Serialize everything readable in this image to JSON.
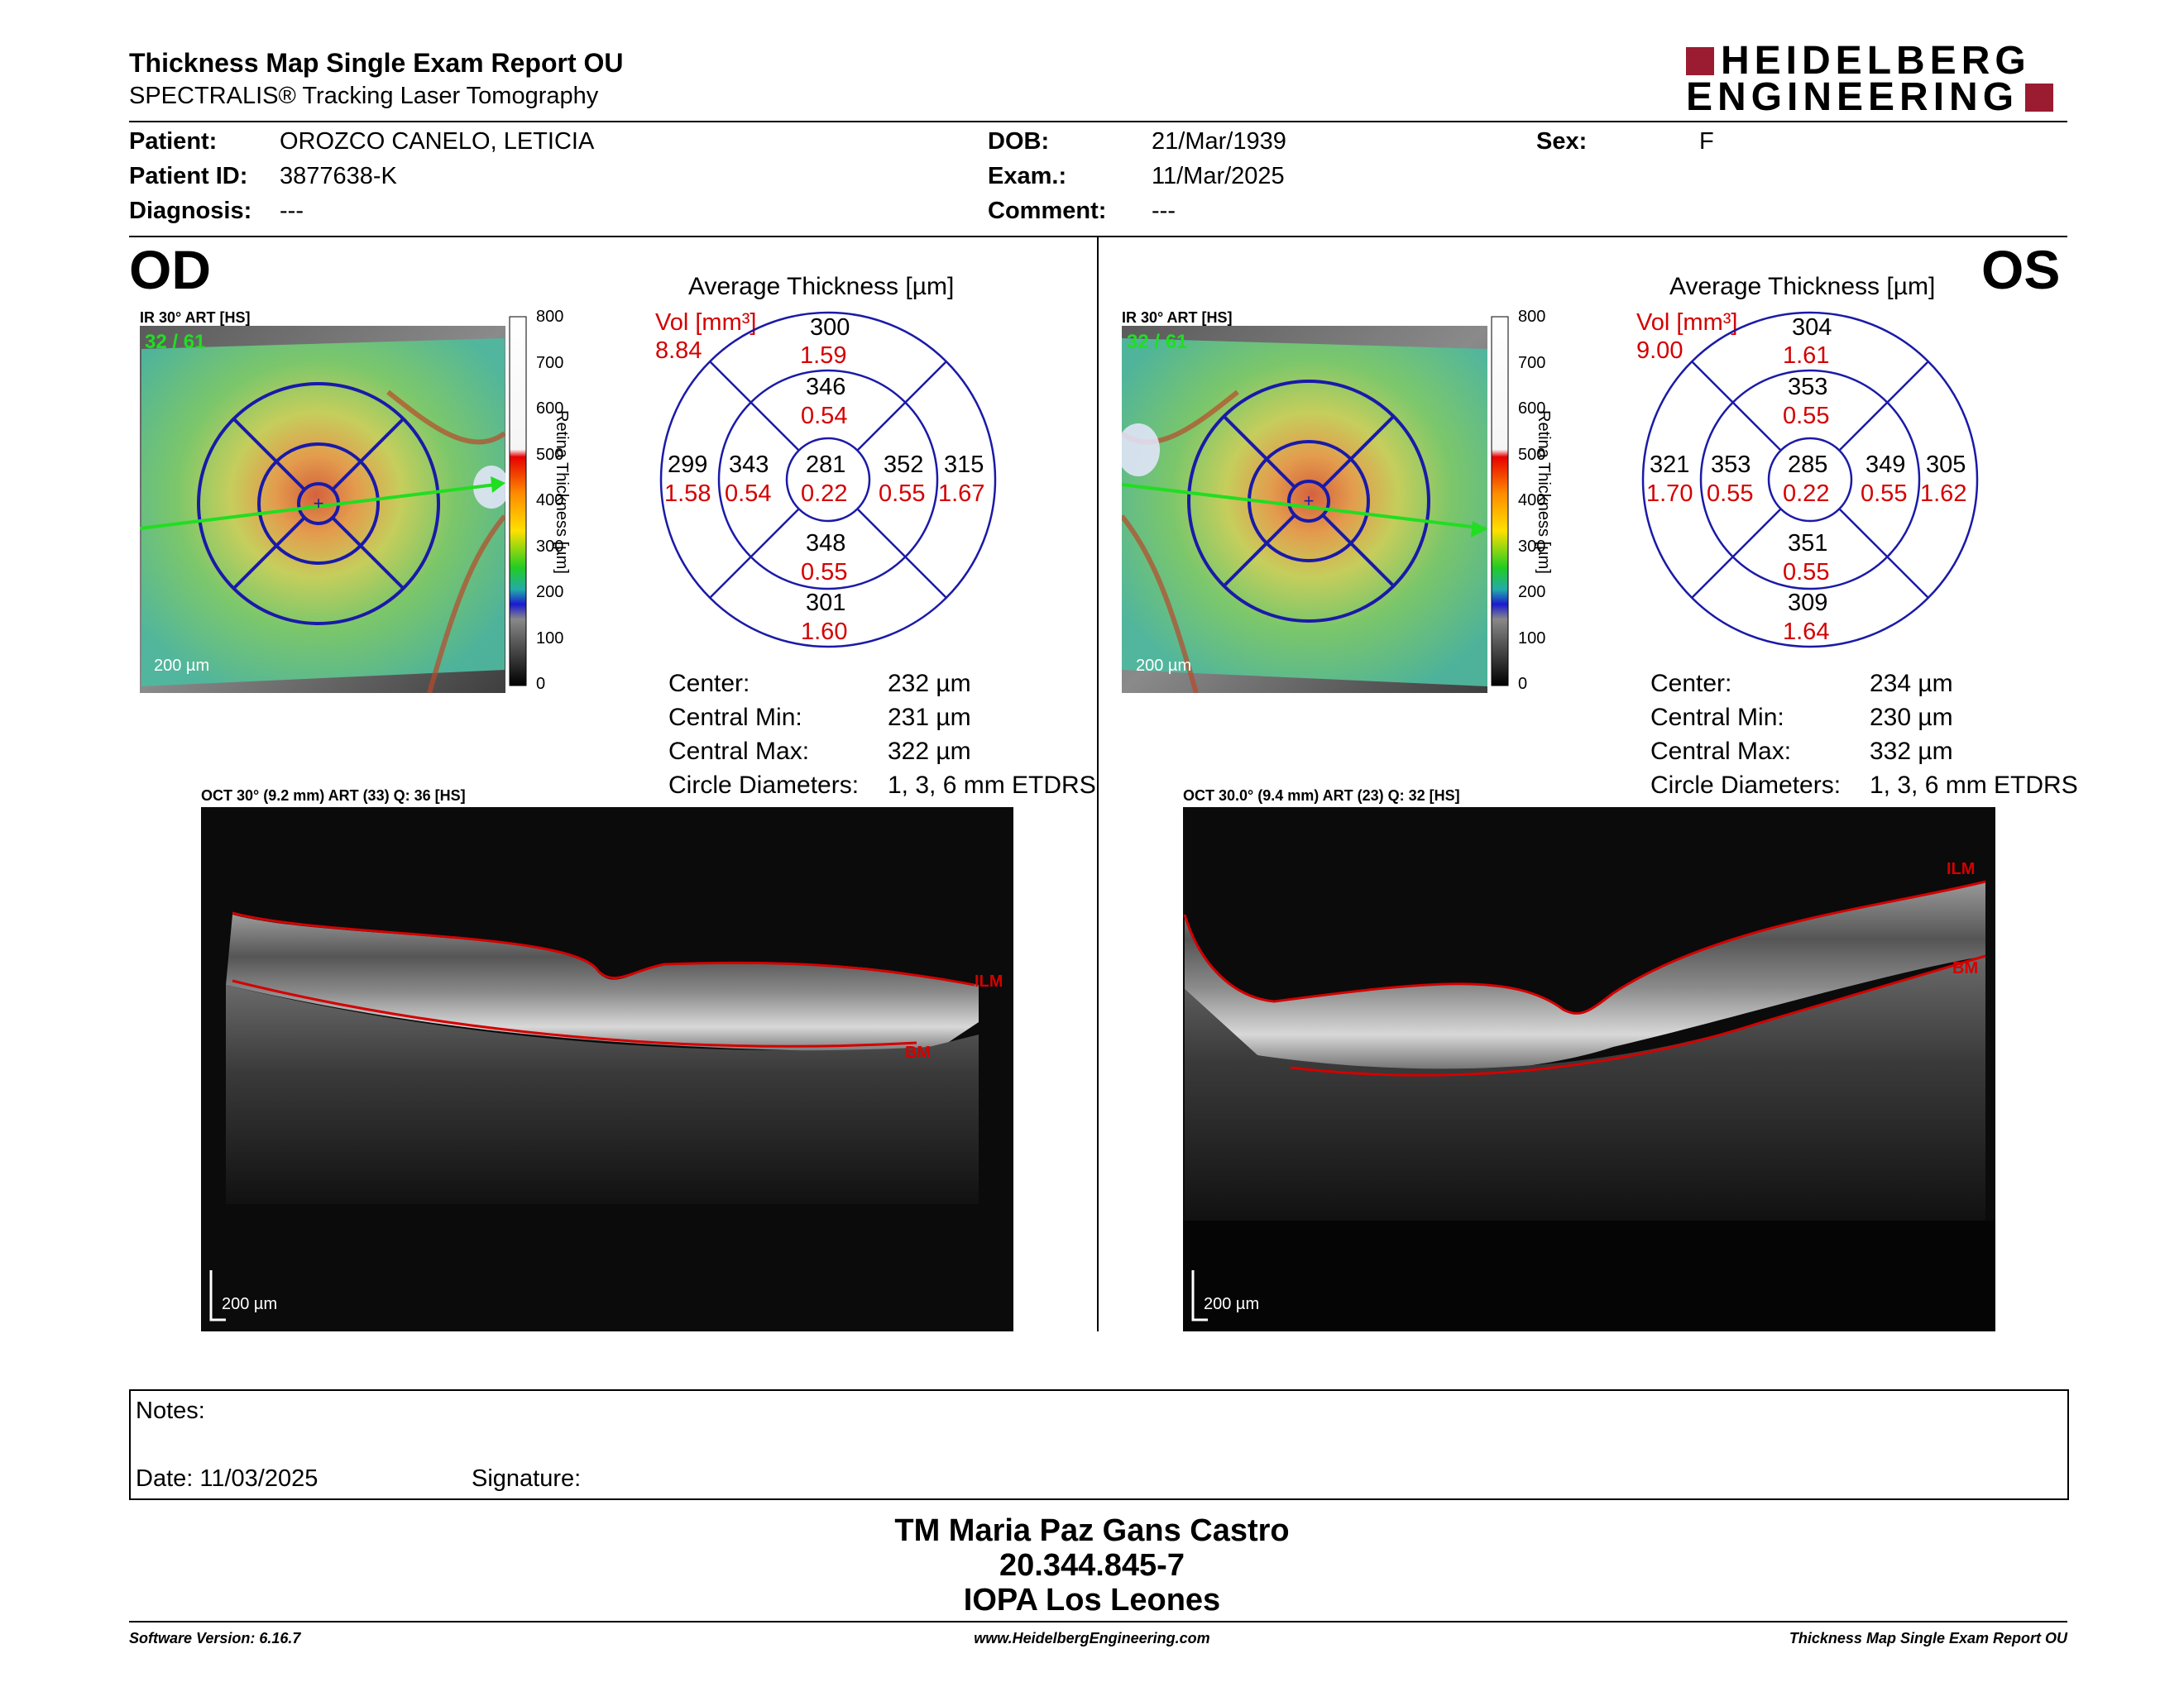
{
  "header": {
    "title": "Thickness Map Single Exam Report OU",
    "subtitle": "SPECTRALIS® Tracking Laser Tomography",
    "logo_line1": "HEIDELBERG",
    "logo_line2": "ENGINEERING"
  },
  "patient": {
    "patient_label": "Patient:",
    "patient_value": "OROZCO CANELO, LETICIA",
    "id_label": "Patient ID:",
    "id_value": "3877638-K",
    "diagnosis_label": "Diagnosis:",
    "diagnosis_value": "---",
    "dob_label": "DOB:",
    "dob_value": "21/Mar/1939",
    "exam_label": "Exam.:",
    "exam_value": "11/Mar/2025",
    "comment_label": "Comment:",
    "comment_value": "---",
    "sex_label": "Sex:",
    "sex_value": "F"
  },
  "colorbar": {
    "ticks": [
      "800",
      "700",
      "600",
      "500",
      "400",
      "300",
      "200",
      "100",
      "0"
    ],
    "label": "Retina Thickness [µm]"
  },
  "od": {
    "eye": "OD",
    "ir_caption": "IR 30° ART [HS]",
    "ir_quality": "32 / 61",
    "ir_scale": "200 µm",
    "etdrs_title": "Average Thickness [µm]",
    "vol_label": "Vol [mm³]",
    "vol_total": "8.84",
    "sectors": {
      "outer_top": "300",
      "outer_top_vol": "1.59",
      "inner_top": "346",
      "inner_top_vol": "0.54",
      "outer_left": "299",
      "outer_left_vol": "1.58",
      "inner_left": "343",
      "inner_left_vol": "0.54",
      "center": "281",
      "center_vol": "0.22",
      "inner_right": "352",
      "inner_right_vol": "0.55",
      "outer_right": "315",
      "outer_right_vol": "1.67",
      "inner_bottom": "348",
      "inner_bottom_vol": "0.55",
      "outer_bottom": "301",
      "outer_bottom_vol": "1.60"
    },
    "stats": {
      "center_label": "Center:",
      "center_value": "232 µm",
      "min_label": "Central Min:",
      "min_value": "231 µm",
      "max_label": "Central Max:",
      "max_value": "322 µm",
      "diam_label": "Circle Diameters:",
      "diam_value": "1, 3, 6 mm ETDRS"
    },
    "oct_caption": "OCT 30° (9.2 mm) ART (33) Q: 36 [HS]",
    "oct_scale": "200 µm",
    "ilm": "ILM",
    "bm": "BM"
  },
  "os": {
    "eye": "OS",
    "ir_caption": "IR 30° ART [HS]",
    "ir_quality": "32 / 61",
    "ir_scale": "200 µm",
    "etdrs_title": "Average Thickness [µm]",
    "vol_label": "Vol [mm³]",
    "vol_total": "9.00",
    "sectors": {
      "outer_top": "304",
      "outer_top_vol": "1.61",
      "inner_top": "353",
      "inner_top_vol": "0.55",
      "outer_left": "321",
      "outer_left_vol": "1.70",
      "inner_left": "353",
      "inner_left_vol": "0.55",
      "center": "285",
      "center_vol": "0.22",
      "inner_right": "349",
      "inner_right_vol": "0.55",
      "outer_right": "305",
      "outer_right_vol": "1.62",
      "inner_bottom": "351",
      "inner_bottom_vol": "0.55",
      "outer_bottom": "309",
      "outer_bottom_vol": "1.64"
    },
    "stats": {
      "center_label": "Center:",
      "center_value": "234 µm",
      "min_label": "Central Min:",
      "min_value": "230 µm",
      "max_label": "Central Max:",
      "max_value": "332 µm",
      "diam_label": "Circle Diameters:",
      "diam_value": "1, 3, 6 mm ETDRS"
    },
    "oct_caption": "OCT 30.0° (9.4 mm) ART (23) Q: 32 [HS]",
    "oct_scale": "200 µm",
    "ilm": "ILM",
    "bm": "BM"
  },
  "notes": {
    "notes_label": "Notes:",
    "date_label": "Date: 11/03/2025",
    "signature_label": "Signature:"
  },
  "signature_block": {
    "name": "TM Maria Paz Gans Castro",
    "id": "20.344.845-7",
    "org": "IOPA Los Leones"
  },
  "footer": {
    "software": "Software Version: 6.16.7",
    "website": "www.HeidelbergEngineering.com",
    "report": "Thickness Map Single Exam Report OU"
  },
  "colors": {
    "accent_red": "#d40000",
    "logo_red": "#9b1b30",
    "etdrs_blue": "#1a1aa8",
    "scan_green": "#22cc22"
  }
}
